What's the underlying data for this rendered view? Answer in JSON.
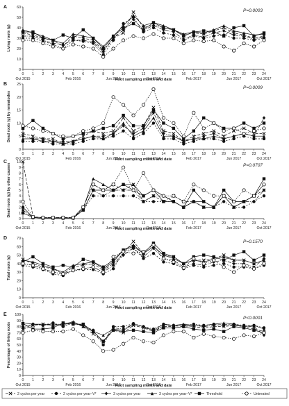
{
  "chart_data": [
    {
      "type": "line",
      "panel": "A",
      "ylabel": "Living roots (g)",
      "xlabel": "Root sampling month and date",
      "annotation": "P=0.0003",
      "ylim": [
        0,
        60
      ],
      "yticks": [
        0,
        10,
        20,
        30,
        40,
        50,
        60
      ],
      "x": [
        0,
        1,
        2,
        3,
        4,
        5,
        6,
        7,
        8,
        9,
        10,
        11,
        12,
        13,
        14,
        15,
        16,
        17,
        18,
        19,
        20,
        21,
        22,
        23,
        24
      ],
      "series": [
        {
          "name": "2 cycles per year",
          "values": [
            35,
            33,
            30,
            28,
            22,
            32,
            30,
            28,
            18,
            30,
            35,
            55,
            40,
            43,
            40,
            38,
            33,
            35,
            34,
            37,
            40,
            35,
            33,
            30,
            32
          ]
        },
        {
          "name": "2 cycles per year–V*",
          "values": [
            30,
            30,
            27,
            24,
            20,
            28,
            27,
            25,
            14,
            28,
            44,
            50,
            36,
            40,
            35,
            33,
            28,
            32,
            30,
            32,
            33,
            30,
            30,
            28,
            30
          ]
        },
        {
          "name": "3 cycles per year",
          "values": [
            32,
            32,
            28,
            25,
            24,
            28,
            28,
            26,
            17,
            30,
            38,
            48,
            38,
            42,
            38,
            36,
            29,
            33,
            31,
            35,
            37,
            33,
            32,
            29,
            31
          ]
        },
        {
          "name": "3 cycles per year–V*",
          "values": [
            38,
            35,
            32,
            28,
            25,
            34,
            32,
            30,
            22,
            32,
            42,
            52,
            42,
            45,
            42,
            38,
            34,
            36,
            35,
            38,
            42,
            37,
            35,
            33,
            34
          ]
        },
        {
          "name": "Threshold",
          "values": [
            36,
            36,
            30,
            28,
            33,
            30,
            38,
            30,
            20,
            32,
            40,
            44,
            38,
            45,
            40,
            38,
            32,
            36,
            37,
            36,
            32,
            40,
            42,
            32,
            35
          ]
        },
        {
          "name": "Untreated",
          "values": [
            28,
            28,
            25,
            22,
            20,
            24,
            22,
            20,
            12,
            20,
            28,
            32,
            30,
            34,
            30,
            30,
            25,
            28,
            27,
            28,
            22,
            18,
            25,
            22,
            28
          ]
        }
      ]
    },
    {
      "type": "line",
      "panel": "B",
      "ylabel": "Dead roots (g) by nematodes",
      "xlabel": "Root sampling month and date",
      "annotation": "P=0.0009",
      "ylim": [
        0,
        25
      ],
      "yticks": [
        0,
        5,
        10,
        15,
        20,
        25
      ],
      "x": [
        0,
        1,
        2,
        3,
        4,
        5,
        6,
        7,
        8,
        9,
        10,
        11,
        12,
        13,
        14,
        15,
        16,
        17,
        18,
        19,
        20,
        21,
        22,
        23,
        24
      ],
      "series": [
        {
          "name": "2 cycles per year",
          "values": [
            6,
            5,
            4,
            4,
            2,
            3,
            5,
            7,
            6,
            7,
            12,
            7,
            9,
            16,
            7,
            6,
            3,
            5,
            6,
            7,
            5,
            7,
            8,
            6,
            6
          ]
        },
        {
          "name": "2 cycles per year–V*",
          "values": [
            3,
            3,
            3,
            2,
            2,
            2,
            3,
            4,
            4,
            5,
            7,
            4,
            6,
            10,
            4,
            4,
            2,
            3,
            4,
            4,
            3,
            4,
            5,
            4,
            4
          ]
        },
        {
          "name": "3 cycles per year",
          "values": [
            5,
            4,
            4,
            3,
            3,
            3,
            4,
            5,
            5,
            6,
            9,
            6,
            8,
            14,
            6,
            5,
            3,
            4,
            5,
            6,
            4,
            5,
            6,
            5,
            12
          ]
        },
        {
          "name": "3 cycles per year–V*",
          "values": [
            4,
            4,
            3,
            3,
            2,
            3,
            4,
            5,
            4,
            6,
            10,
            5,
            7,
            12,
            5,
            5,
            3,
            4,
            4,
            5,
            4,
            5,
            6,
            5,
            5
          ]
        },
        {
          "name": "Threshold",
          "values": [
            8,
            11,
            8,
            6,
            4,
            5,
            6,
            7,
            8,
            9,
            13,
            9,
            9,
            15,
            10,
            8,
            4,
            7,
            12,
            10,
            8,
            8,
            10,
            8,
            10
          ]
        },
        {
          "name": "Untreated",
          "values": [
            9,
            8,
            7,
            6,
            5,
            5,
            7,
            8,
            10,
            20,
            17,
            13,
            17,
            23,
            12,
            10,
            5,
            14,
            8,
            10,
            7,
            8,
            6,
            7,
            8
          ]
        }
      ]
    },
    {
      "type": "line",
      "panel": "C",
      "ylabel": "Dead roots (g) by other causes",
      "xlabel": "Root sampling month and date",
      "annotation": "P=0.0707",
      "ylim": [
        0,
        10
      ],
      "yticks": [
        0,
        1,
        2,
        3,
        4,
        5,
        6,
        7,
        8,
        9,
        10
      ],
      "x": [
        0,
        1,
        2,
        3,
        4,
        5,
        6,
        7,
        8,
        9,
        10,
        11,
        12,
        13,
        14,
        15,
        16,
        17,
        18,
        19,
        20,
        21,
        22,
        23,
        24
      ],
      "series": [
        {
          "name": "2 cycles per year",
          "values": [
            10,
            0.3,
            0.2,
            0.2,
            0.2,
            0.2,
            2,
            6,
            5,
            6,
            5,
            6,
            3,
            4,
            3,
            4,
            3,
            3,
            2,
            2,
            4,
            2,
            3,
            4,
            5
          ]
        },
        {
          "name": "2 cycles per year–V*",
          "values": [
            2,
            0.2,
            0.1,
            0.1,
            0.1,
            0.1,
            1.5,
            4,
            4,
            4,
            4,
            4,
            3,
            3,
            3,
            3,
            2,
            3,
            2,
            2,
            3,
            2,
            2,
            3,
            4
          ]
        },
        {
          "name": "3 cycles per year",
          "values": [
            1.5,
            0.2,
            0.1,
            0.1,
            0.1,
            0.1,
            1.5,
            5,
            4,
            5,
            5,
            5,
            3,
            4,
            4,
            3,
            2,
            3,
            2,
            2,
            4,
            3,
            3,
            3,
            5
          ]
        },
        {
          "name": "3 cycles per year–V*",
          "values": [
            2,
            0.2,
            0.1,
            0.1,
            0.1,
            0.1,
            1.8,
            7,
            6,
            5,
            6,
            6,
            4,
            5,
            4,
            3,
            2,
            3,
            3,
            2,
            4,
            2,
            3,
            4,
            6
          ]
        },
        {
          "name": "Threshold",
          "values": [
            1,
            0.2,
            0.1,
            0.1,
            0.1,
            0.1,
            1.5,
            5,
            5,
            5,
            6,
            5,
            4,
            5,
            3,
            3,
            2,
            5,
            3,
            2,
            5,
            3,
            3,
            4,
            7
          ]
        },
        {
          "name": "Untreated",
          "values": [
            3,
            0.3,
            0.2,
            0.2,
            0.2,
            0.2,
            2,
            6,
            5,
            6,
            9,
            5,
            8,
            5,
            4,
            4,
            3,
            6,
            5,
            4,
            4,
            3,
            5,
            4,
            6
          ]
        }
      ]
    },
    {
      "type": "line",
      "panel": "D",
      "ylabel": "Total roots (g)",
      "xlabel": "Root sampling month and date",
      "annotation": "P=0.1570",
      "ylim": [
        0,
        70
      ],
      "yticks": [
        0,
        10,
        20,
        30,
        40,
        50,
        60,
        70
      ],
      "x": [
        0,
        1,
        2,
        3,
        4,
        5,
        6,
        7,
        8,
        9,
        10,
        11,
        12,
        13,
        14,
        15,
        16,
        17,
        18,
        19,
        20,
        21,
        22,
        23,
        24
      ],
      "series": [
        {
          "name": "2 cycles per year",
          "values": [
            45,
            40,
            36,
            34,
            28,
            36,
            38,
            40,
            32,
            40,
            52,
            66,
            52,
            60,
            50,
            48,
            40,
            44,
            44,
            46,
            50,
            44,
            44,
            40,
            44
          ]
        },
        {
          "name": "2 cycles per year–V*",
          "values": [
            38,
            36,
            33,
            28,
            26,
            32,
            33,
            33,
            28,
            34,
            54,
            58,
            46,
            52,
            42,
            40,
            34,
            38,
            36,
            38,
            40,
            36,
            36,
            34,
            38
          ]
        },
        {
          "name": "3 cycles per year",
          "values": [
            40,
            38,
            34,
            30,
            28,
            32,
            34,
            36,
            30,
            38,
            50,
            58,
            48,
            58,
            46,
            44,
            36,
            40,
            38,
            42,
            44,
            40,
            40,
            36,
            46
          ]
        },
        {
          "name": "3 cycles per year–V*",
          "values": [
            44,
            42,
            38,
            34,
            30,
            38,
            40,
            42,
            34,
            42,
            56,
            62,
            52,
            60,
            50,
            46,
            40,
            44,
            42,
            45,
            48,
            44,
            44,
            40,
            44
          ]
        },
        {
          "name": "Threshold",
          "values": [
            42,
            48,
            40,
            36,
            38,
            36,
            45,
            42,
            36,
            44,
            56,
            60,
            52,
            64,
            52,
            48,
            40,
            48,
            50,
            48,
            44,
            50,
            54,
            44,
            50
          ]
        },
        {
          "name": "Untreated",
          "values": [
            40,
            38,
            34,
            30,
            28,
            32,
            34,
            36,
            30,
            48,
            54,
            52,
            54,
            62,
            46,
            42,
            35,
            46,
            40,
            44,
            36,
            30,
            38,
            34,
            40
          ]
        }
      ]
    },
    {
      "type": "line",
      "panel": "E",
      "ylabel": "Percentage of living roots",
      "xlabel": "Root sampling month and date",
      "annotation": "P<0.0001",
      "ylim": [
        0,
        100
      ],
      "yticks": [
        0,
        10,
        20,
        30,
        40,
        50,
        60,
        70,
        80,
        90,
        100
      ],
      "x": [
        0,
        1,
        2,
        3,
        4,
        5,
        6,
        7,
        8,
        9,
        10,
        11,
        12,
        13,
        14,
        15,
        16,
        17,
        18,
        19,
        20,
        21,
        22,
        23,
        24
      ],
      "series": [
        {
          "name": "2 cycles per year",
          "values": [
            75,
            82,
            84,
            84,
            82,
            86,
            80,
            68,
            55,
            74,
            70,
            82,
            78,
            72,
            80,
            80,
            82,
            80,
            78,
            80,
            80,
            82,
            80,
            76,
            72
          ]
        },
        {
          "name": "2 cycles per year–V*",
          "values": [
            80,
            84,
            82,
            86,
            80,
            86,
            82,
            74,
            50,
            80,
            80,
            85,
            80,
            76,
            84,
            82,
            82,
            84,
            82,
            84,
            82,
            84,
            82,
            82,
            78
          ]
        },
        {
          "name": "3 cycles per year",
          "values": [
            78,
            84,
            82,
            84,
            84,
            86,
            82,
            72,
            56,
            78,
            76,
            84,
            80,
            72,
            82,
            82,
            80,
            82,
            80,
            82,
            84,
            82,
            80,
            80,
            66
          ]
        },
        {
          "name": "3 cycles per year–V*",
          "values": [
            86,
            84,
            84,
            82,
            84,
            88,
            80,
            72,
            66,
            76,
            74,
            84,
            80,
            74,
            84,
            82,
            84,
            82,
            82,
            84,
            86,
            84,
            80,
            82,
            76
          ]
        },
        {
          "name": "Threshold",
          "values": [
            85,
            76,
            76,
            78,
            86,
            84,
            84,
            72,
            56,
            74,
            72,
            74,
            72,
            70,
            78,
            78,
            80,
            76,
            74,
            76,
            72,
            80,
            78,
            74,
            70
          ]
        },
        {
          "name": "Untreated",
          "values": [
            70,
            74,
            72,
            72,
            72,
            76,
            66,
            56,
            40,
            42,
            52,
            62,
            56,
            54,
            66,
            72,
            72,
            62,
            68,
            64,
            62,
            60,
            66,
            64,
            70
          ]
        }
      ]
    }
  ],
  "shared": {
    "x_labels": [
      "0",
      "1",
      "2",
      "3",
      "4",
      "5",
      "6",
      "7",
      "8",
      "9",
      "10",
      "11",
      "12",
      "13",
      "14",
      "15",
      "16",
      "17",
      "18",
      "19",
      "20",
      "21",
      "22",
      "23",
      "24"
    ],
    "date_labels": [
      {
        "x": 0,
        "text": "Oct 2015"
      },
      {
        "x": 5,
        "text": "Feb 2016"
      },
      {
        "x": 9,
        "text": "Jun 2016"
      },
      {
        "x": 13,
        "text": "Oct 2016"
      },
      {
        "x": 17,
        "text": "Feb 2017"
      },
      {
        "x": 21,
        "text": "Jun 2017"
      },
      {
        "x": 24,
        "text": "Oct 2017"
      }
    ],
    "legend": [
      {
        "name": "2 cycles per year",
        "marker": "x",
        "dash": "4,2"
      },
      {
        "name": "2 cycles per year–V*",
        "marker": "circle-filled",
        "dash": "2,2"
      },
      {
        "name": "3 cycles per year",
        "marker": "diamond-filled",
        "dash": "5,1.5,1,1.5"
      },
      {
        "name": "3 cycles per year–V*",
        "marker": "triangle-filled",
        "dash": ""
      },
      {
        "name": "Threshold",
        "marker": "square-filled",
        "dash": ""
      },
      {
        "name": "Untreated",
        "marker": "circle-open",
        "dash": "1.5,1.5"
      }
    ]
  }
}
